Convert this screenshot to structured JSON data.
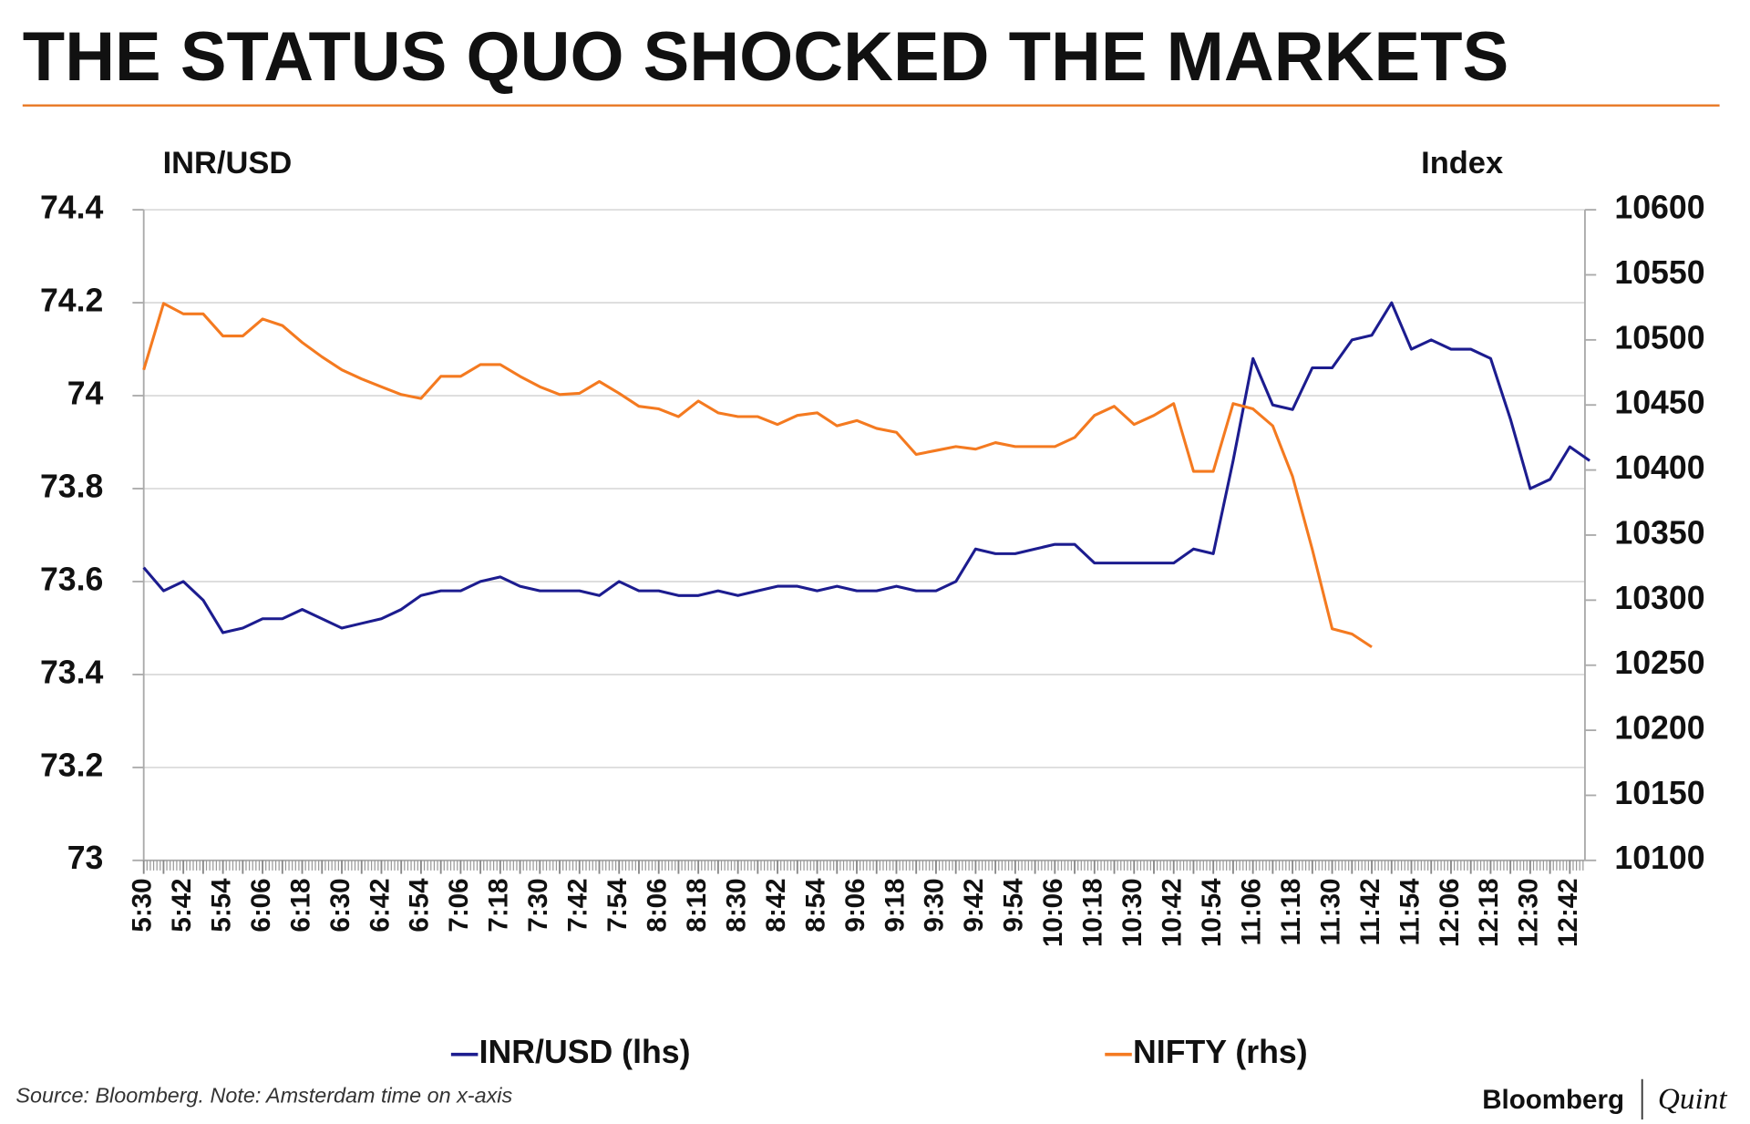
{
  "chart_data": {
    "type": "line",
    "title": "THE STATUS QUO SHOCKED THE MARKETS",
    "y_label": "INR/USD",
    "y2_label": "Index",
    "source": "Source: Bloomberg. Note: Amsterdam time on x-axis",
    "logo": {
      "left": "Bloomberg",
      "right": "Quint"
    },
    "categories": [
      "5:30",
      null,
      "5:42",
      null,
      "5:54",
      null,
      "6:06",
      null,
      "6:18",
      null,
      "6:30",
      null,
      "6:42",
      null,
      "6:54",
      null,
      "7:06",
      null,
      "7:18",
      null,
      "7:30",
      null,
      "7:42",
      null,
      "7:54",
      null,
      "8:06",
      null,
      "8:18",
      null,
      "8:30",
      null,
      "8:42",
      null,
      "8:54",
      null,
      "9:06",
      null,
      "9:18",
      null,
      "9:30",
      null,
      "9:42",
      null,
      "9:54",
      null,
      "10:06",
      null,
      "10:18",
      null,
      "10:30",
      null,
      "10:42",
      null,
      "10:54",
      null,
      "11:06",
      null,
      "11:18",
      null,
      "11:30",
      null,
      "11:42",
      null,
      "11:54",
      null,
      "12:06",
      null,
      "12:18",
      null,
      "12:30",
      null,
      "12:42",
      null
    ],
    "series": [
      {
        "name": "INR/USD (lhs)",
        "color": "#1c1c8f",
        "axis": "y",
        "values": [
          73.63,
          73.58,
          73.6,
          73.56,
          73.49,
          73.5,
          73.52,
          73.52,
          73.54,
          73.52,
          73.5,
          73.51,
          73.52,
          73.54,
          73.57,
          73.58,
          73.58,
          73.6,
          73.61,
          73.59,
          73.58,
          73.58,
          73.58,
          73.57,
          73.6,
          73.58,
          73.58,
          73.57,
          73.57,
          73.58,
          73.57,
          73.58,
          73.59,
          73.59,
          73.58,
          73.59,
          73.58,
          73.58,
          73.59,
          73.58,
          73.58,
          73.6,
          73.67,
          73.66,
          73.66,
          73.67,
          73.68,
          73.68,
          73.64,
          73.64,
          73.64,
          73.64,
          73.64,
          73.67,
          73.66,
          73.86,
          74.08,
          73.98,
          73.97,
          74.06,
          74.06,
          74.12,
          74.13,
          74.2,
          74.1,
          74.12,
          74.1,
          74.1,
          74.08,
          73.95,
          73.8,
          73.82,
          73.89,
          73.86
        ]
      },
      {
        "name": "NIFTY (rhs)",
        "color": "#f47a20",
        "axis": "y2",
        "values": [
          10477,
          10528,
          10520,
          10520,
          10503,
          10503,
          10516,
          10511,
          10498,
          10487,
          10477,
          10470,
          10464,
          10458,
          10455,
          10472,
          10472,
          10481,
          10481,
          10472,
          10464,
          10458,
          10459,
          10468,
          10459,
          10449,
          10447,
          10441,
          10453,
          10444,
          10441,
          10441,
          10435,
          10442,
          10444,
          10434,
          10438,
          10432,
          10429,
          10412,
          10415,
          10418,
          10416,
          10421,
          10418,
          10418,
          10418,
          10425,
          10442,
          10449,
          10435,
          10442,
          10451,
          10399,
          10399,
          10451,
          10447,
          10434,
          10395,
          10339,
          10278,
          10274,
          10264,
          null,
          null,
          null,
          null,
          null,
          null,
          null,
          null,
          null,
          null,
          null
        ]
      }
    ],
    "ylim": [
      73,
      74.4
    ],
    "yticks": [
      73,
      73.2,
      73.4,
      73.6,
      73.8,
      74,
      74.2,
      74.4
    ],
    "y2lim": [
      10100,
      10600
    ],
    "y2ticks": [
      10100,
      10150,
      10200,
      10250,
      10300,
      10350,
      10400,
      10450,
      10500,
      10550,
      10600
    ],
    "grid": true
  }
}
